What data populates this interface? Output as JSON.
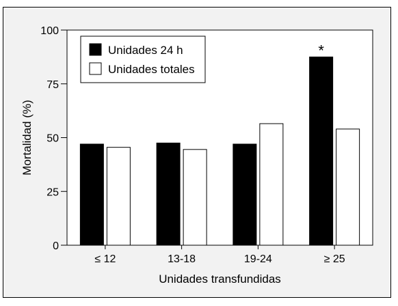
{
  "chart_data": {
    "type": "bar",
    "title": "",
    "xlabel": "Unidades transfundidas",
    "ylabel": "Mortalidad (%)",
    "ylim": [
      0,
      100
    ],
    "yticks": [
      "0",
      "25",
      "50",
      "75",
      "100"
    ],
    "categories": [
      "≤ 12",
      "13-18",
      "19-24",
      "≥ 25"
    ],
    "series": [
      {
        "name": "Unidades 24 h",
        "color": "#000000",
        "values": [
          47,
          47.5,
          47,
          87.5
        ]
      },
      {
        "name": "Unidades totales",
        "color": "#ffffff",
        "values": [
          45.5,
          44.5,
          56.5,
          54
        ]
      }
    ],
    "annotations": [
      {
        "text": "*",
        "category": "≥ 25",
        "series": "Unidades 24 h"
      }
    ],
    "legend_position": "top-left",
    "grid": false
  }
}
